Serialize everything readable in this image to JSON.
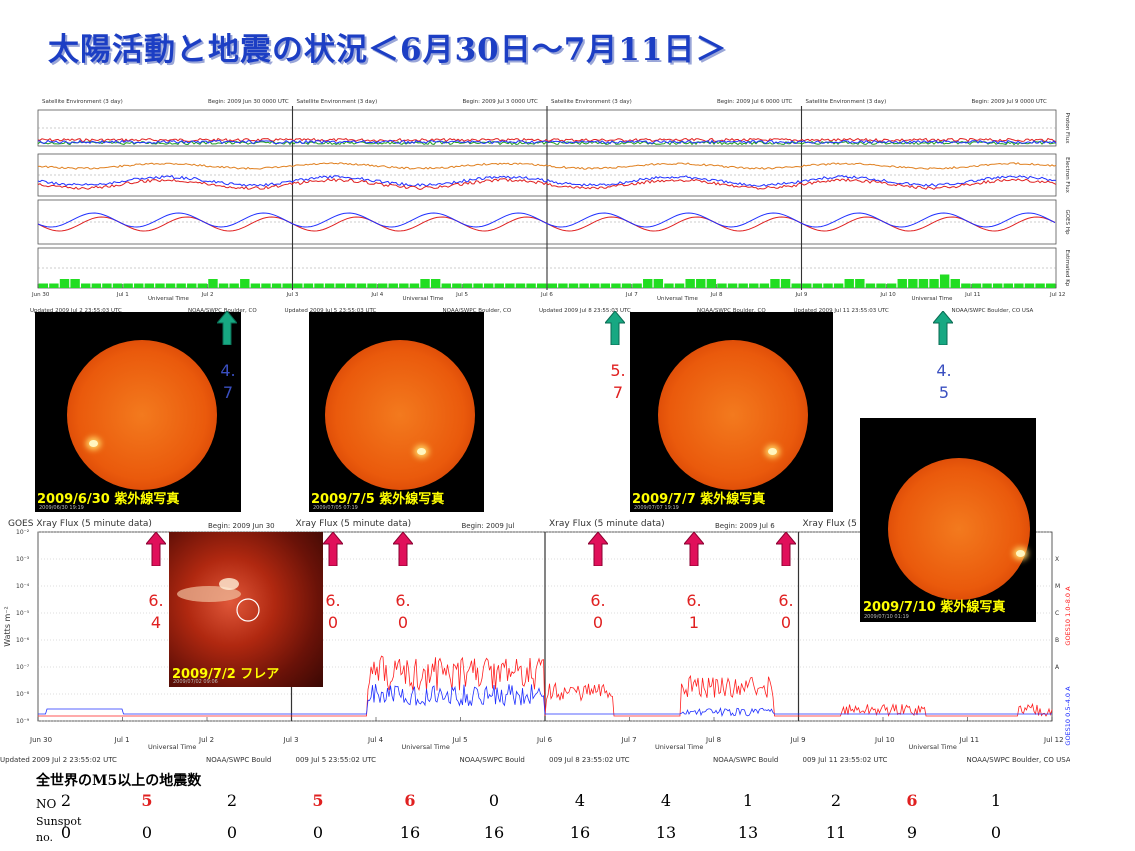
{
  "title": "太陽活動と地震の状況＜6月30日～7月11日＞",
  "satellite_env": {
    "header_left": "Satellite Environment (3 day)",
    "segments": [
      {
        "header": "Satellite Environment (3 day)",
        "begin": "Begin: 2009 Jun 30 0000 UTC",
        "updated": "Updated 2009 Jul 2 23:55:03 UTC",
        "credit": "NOAA/SWPC Boulder, CO"
      },
      {
        "header": "Satellite Environment (3 day)",
        "begin": "Begin: 2009 Jul 3 0000 UTC",
        "updated": "Updated 2009 Jul 5 23:55:03 UTC",
        "credit": "NOAA/SWPC Boulder, CO"
      },
      {
        "header": "Satellite Environment (3 day)",
        "begin": "Begin: 2009 Jul 6 0000 UTC",
        "updated": "Updated 2009 Jul 8 23:55:03 UTC",
        "credit": "NOAA/SWPC Boulder, CO"
      },
      {
        "header": "Satellite Environment (3 day)",
        "begin": "Begin: 2009 Jul 9 0000 UTC",
        "updated": "Updated 2009 Jul 11 23:55:03 UTC",
        "credit": "NOAA/SWPC Boulder, CO USA"
      }
    ],
    "panel_labels": [
      "Proton Flux",
      "Electron Flux",
      "GOES Hp",
      "Estimated Kp"
    ],
    "x_ticks": [
      "Jun 30",
      "Jul 1",
      "Jul 2",
      "Jul 3",
      "Jul 4",
      "Jul 5",
      "Jul 6",
      "Jul 7",
      "Jul 8",
      "Jul 9",
      "Jul 10",
      "Jul 11",
      "Jul 12"
    ],
    "xlabel": "Universal Time",
    "kp_values": [
      1,
      1,
      2,
      2,
      1,
      1,
      1,
      1,
      1,
      1,
      1,
      1,
      1,
      1,
      1,
      1,
      2,
      1,
      1,
      2,
      1,
      1,
      1,
      1,
      1,
      1,
      1,
      1,
      1,
      1,
      1,
      1,
      1,
      1,
      1,
      1,
      2,
      2,
      1,
      1,
      1,
      1,
      1,
      1,
      1,
      1,
      1,
      1,
      1,
      1,
      1,
      1,
      1,
      1,
      1,
      1,
      1,
      2,
      2,
      1,
      1,
      2,
      2,
      2,
      1,
      1,
      1,
      1,
      1,
      2,
      2,
      1,
      1,
      1,
      1,
      1,
      2,
      2,
      1,
      1,
      1,
      2,
      2,
      2,
      2,
      3,
      2,
      1,
      1,
      1,
      1,
      1,
      1,
      1,
      1,
      1
    ]
  },
  "xray": {
    "segments": [
      {
        "header": "GOES Xray Flux (5 minute data)",
        "begin": "Begin: 2009 Jun 30",
        "updated": "Updated 2009 Jul 2 23:55:02 UTC",
        "credit": "NOAA/SWPC Bould"
      },
      {
        "header": "Xray Flux (5 minute data)",
        "begin": "Begin: 2009 Jul",
        "updated": "009 Jul 5 23:55:02 UTC",
        "credit": "NOAA/SWPC Bould"
      },
      {
        "header": "Xray Flux (5 minute data)",
        "begin": "Begin: 2009 Jul 6",
        "updated": "009 Jul 8 23:55:02 UTC",
        "credit": "NOAA/SWPC Bould"
      },
      {
        "header": "Xray Flux (5",
        "begin": "",
        "updated": "009 Jul 11 23:55:02 UTC",
        "credit": "NOAA/SWPC Boulder, CO USA"
      }
    ],
    "ylabel": "Watts m⁻²",
    "right_label_red": "GOES10 1.0–8.0 A",
    "right_label_blue": "GOES10 0.5–4.0 A",
    "class_letters": [
      "X",
      "M",
      "C",
      "B",
      "A"
    ],
    "y_ticks": [
      "10⁻²",
      "10⁻³",
      "10⁻⁴",
      "10⁻⁵",
      "10⁻⁶",
      "10⁻⁷",
      "10⁻⁸",
      "10⁻⁹"
    ],
    "xlabel": "Universal Time"
  },
  "sun_images": [
    {
      "caption": "2009/6/30 紫外線写真",
      "stamp": "2009/06/30 19:19"
    },
    {
      "caption": "2009/7/5 紫外線写真",
      "stamp": "2009/07/05 07:19"
    },
    {
      "caption": "2009/7/7 紫外線写真",
      "stamp": "2009/07/07 19:19"
    },
    {
      "caption": "2009/7/10 紫外線写真",
      "stamp": "2009/07/10 01:19"
    }
  ],
  "flare_image": {
    "caption": "2009/7/2 フレア",
    "stamp": "2009/07/02 09:06"
  },
  "quakes_top": [
    {
      "a": "4.",
      "b": "7",
      "color": "#3a4fc0"
    },
    {
      "a": "5.",
      "b": "7",
      "color": "#e02020"
    },
    {
      "a": "4.",
      "b": "5",
      "color": "#3a4fc0"
    }
  ],
  "quakes_xray": [
    {
      "a": "6.",
      "b": "4"
    },
    {
      "a": "6.",
      "b": "0"
    },
    {
      "a": "6.",
      "b": "0"
    },
    {
      "a": "6.",
      "b": "0"
    },
    {
      "a": "6.",
      "b": "1"
    },
    {
      "a": "6.",
      "b": "0"
    }
  ],
  "colors": {
    "title": "#1c3ec4",
    "up_arrow_teal": "#17a882",
    "up_arrow_pink": "#e0105a",
    "quake_red": "#e02020",
    "quake_blue": "#3a4fc0",
    "xray_red": "#ff2020",
    "xray_blue": "#2030ff",
    "caption_yellow": "#ffff00"
  },
  "table": {
    "title": "全世界のM5以上の地震数",
    "row1_label": "NO",
    "row2_label_a": "Sunspot",
    "row2_label_b": "no.",
    "no_counts": [
      "2",
      "5",
      "2",
      "5",
      "6",
      "0",
      "4",
      "4",
      "1",
      "2",
      "6",
      "1"
    ],
    "no_highlight": [
      false,
      true,
      false,
      true,
      true,
      false,
      false,
      false,
      false,
      false,
      true,
      false
    ],
    "sunspots": [
      "0",
      "0",
      "0",
      "0",
      "16",
      "16",
      "16",
      "13",
      "13",
      "11",
      "9",
      "0"
    ]
  }
}
